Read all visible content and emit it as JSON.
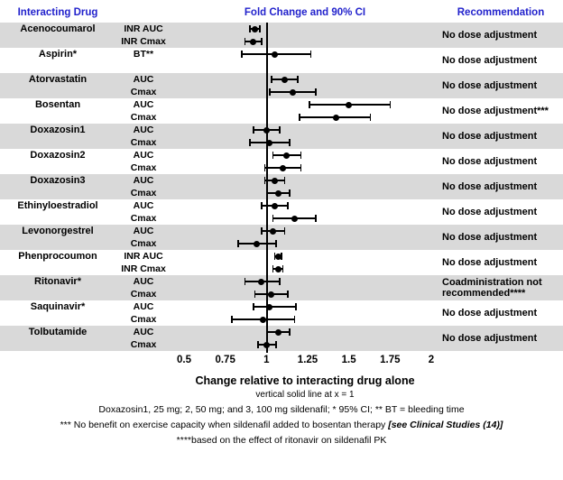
{
  "header": {
    "interacting_drug": "Interacting Drug",
    "fold_change": "Fold Change and 90% CI",
    "recommendation": "Recommendation"
  },
  "axis": {
    "xlabel": "Change relative to interacting drug alone",
    "note": "vertical solid line at x = 1"
  },
  "footnotes": {
    "line1": "Doxazosin1, 25 mg; 2, 50 mg; and 3, 100 mg sildenafil; * 95% CI; ** BT = bleeding time",
    "line2_text": "*** No benefit on exercise capacity when sildenafil added to bosentan therapy",
    "line2_italic": "[see Clinical Studies (14)]",
    "line3": "****based on the effect of ritonavir on sildenafil PK"
  },
  "chart_data": {
    "type": "forest",
    "xlim": [
      0.5,
      2.0
    ],
    "ticks": [
      "0.5",
      "0.75",
      "1",
      "1.25",
      "1.5",
      "1.75",
      "2"
    ],
    "tick_values": [
      0.5,
      0.75,
      1,
      1.25,
      1.5,
      1.75,
      2
    ],
    "reference_line": 1,
    "colors": {
      "band": "#d9d9d9",
      "marker": "#000000",
      "header_text": "#2222cc"
    },
    "groups": [
      {
        "drug": "Acenocoumarol",
        "shaded": true,
        "recommendation": "No dose adjustment",
        "rows": [
          {
            "measure": "INR AUC",
            "value": 0.93,
            "lo": 0.9,
            "hi": 0.96
          },
          {
            "measure": "INR Cmax",
            "value": 0.92,
            "lo": 0.87,
            "hi": 0.97
          }
        ]
      },
      {
        "drug": "Aspirin*",
        "shaded": false,
        "recommendation": "No dose adjustment",
        "rows": [
          {
            "measure": "BT**",
            "value": 1.05,
            "lo": 0.85,
            "hi": 1.27
          }
        ]
      },
      {
        "drug": "Atorvastatin",
        "shaded": true,
        "recommendation": "No dose adjustment",
        "rows": [
          {
            "measure": "AUC",
            "value": 1.11,
            "lo": 1.03,
            "hi": 1.19
          },
          {
            "measure": "Cmax",
            "value": 1.16,
            "lo": 1.02,
            "hi": 1.3
          }
        ]
      },
      {
        "drug": "Bosentan",
        "shaded": false,
        "recommendation": "No dose adjustment***",
        "rows": [
          {
            "measure": "AUC",
            "value": 1.5,
            "lo": 1.26,
            "hi": 1.75
          },
          {
            "measure": "Cmax",
            "value": 1.42,
            "lo": 1.2,
            "hi": 1.63
          }
        ]
      },
      {
        "drug": "Doxazosin1",
        "shaded": true,
        "recommendation": "No dose adjustment",
        "rows": [
          {
            "measure": "AUC",
            "value": 1.0,
            "lo": 0.92,
            "hi": 1.08
          },
          {
            "measure": "Cmax",
            "value": 1.02,
            "lo": 0.9,
            "hi": 1.14
          }
        ]
      },
      {
        "drug": "Doxazosin2",
        "shaded": false,
        "recommendation": "No dose adjustment",
        "rows": [
          {
            "measure": "AUC",
            "value": 1.12,
            "lo": 1.04,
            "hi": 1.21
          },
          {
            "measure": "Cmax",
            "value": 1.1,
            "lo": 0.99,
            "hi": 1.21
          }
        ]
      },
      {
        "drug": "Doxazosin3",
        "shaded": true,
        "recommendation": "No dose adjustment",
        "rows": [
          {
            "measure": "AUC",
            "value": 1.05,
            "lo": 0.99,
            "hi": 1.11
          },
          {
            "measure": "Cmax",
            "value": 1.07,
            "lo": 1.0,
            "hi": 1.14
          }
        ]
      },
      {
        "drug": "Ethinyloestradiol",
        "shaded": false,
        "recommendation": "No dose adjustment",
        "rows": [
          {
            "measure": "AUC",
            "value": 1.05,
            "lo": 0.97,
            "hi": 1.13
          },
          {
            "measure": "Cmax",
            "value": 1.17,
            "lo": 1.04,
            "hi": 1.3
          }
        ]
      },
      {
        "drug": "Levonorgestrel",
        "shaded": true,
        "recommendation": "No dose adjustment",
        "rows": [
          {
            "measure": "AUC",
            "value": 1.04,
            "lo": 0.97,
            "hi": 1.11
          },
          {
            "measure": "Cmax",
            "value": 0.94,
            "lo": 0.83,
            "hi": 1.06
          }
        ]
      },
      {
        "drug": "Phenprocoumon",
        "shaded": false,
        "recommendation": "No dose adjustment",
        "rows": [
          {
            "measure": "INR AUC",
            "value": 1.07,
            "lo": 1.05,
            "hi": 1.09
          },
          {
            "measure": "INR Cmax",
            "value": 1.07,
            "lo": 1.04,
            "hi": 1.1
          }
        ]
      },
      {
        "drug": "Ritonavir*",
        "shaded": true,
        "recommendation": "Coadministration not recommended****",
        "rows": [
          {
            "measure": "AUC",
            "value": 0.97,
            "lo": 0.87,
            "hi": 1.08
          },
          {
            "measure": "Cmax",
            "value": 1.03,
            "lo": 0.93,
            "hi": 1.13
          }
        ]
      },
      {
        "drug": "Saquinavir*",
        "shaded": false,
        "recommendation": "No dose adjustment",
        "rows": [
          {
            "measure": "AUC",
            "value": 1.02,
            "lo": 0.92,
            "hi": 1.18
          },
          {
            "measure": "Cmax",
            "value": 0.98,
            "lo": 0.79,
            "hi": 1.17
          }
        ]
      },
      {
        "drug": "Tolbutamide",
        "shaded": true,
        "recommendation": "No dose adjustment",
        "rows": [
          {
            "measure": "AUC",
            "value": 1.07,
            "lo": 1.0,
            "hi": 1.14
          },
          {
            "measure": "Cmax",
            "value": 1.0,
            "lo": 0.95,
            "hi": 1.06
          }
        ]
      }
    ]
  }
}
